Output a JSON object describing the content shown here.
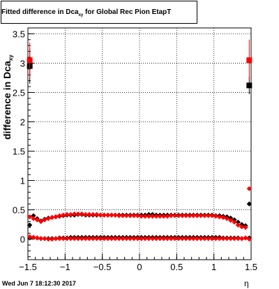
{
  "title": {
    "main": "Fitted difference in Dca",
    "sub": "xy",
    "rest": " for Global Rec Pion EtapT"
  },
  "ylabel": {
    "main": "difference in Dca",
    "sub": "xy"
  },
  "xlabel": "η",
  "footer": "Wed Jun  7 18:12:30 2017",
  "colors": {
    "series_black": "#000000",
    "series_red": "#ff0000",
    "grid": "#000000"
  },
  "chart_data": {
    "type": "scatter",
    "xlim": [
      -1.5,
      1.5
    ],
    "ylim": [
      -0.35,
      3.6
    ],
    "xticks": [
      -1.5,
      -1,
      -0.5,
      0,
      0.5,
      1,
      1.5
    ],
    "xtick_labels": [
      "−1.5",
      "−1",
      "−0.5",
      "0",
      "0.5",
      "1",
      "1.5"
    ],
    "yticks": [
      0,
      0.5,
      1,
      1.5,
      2,
      2.5,
      3,
      3.5
    ],
    "ytick_labels": [
      "0",
      "0.5",
      "1",
      "1.5",
      "2",
      "2.5",
      "3",
      "3.5"
    ],
    "grid": true,
    "series": [
      {
        "color": "#000000",
        "marker": "square",
        "x": [
          -1.475,
          1.475
        ],
        "y": [
          2.95,
          2.62
        ],
        "yerr": [
          0.3,
          0.15
        ]
      },
      {
        "color": "#ff0000",
        "marker": "square",
        "x": [
          -1.475,
          1.475
        ],
        "y": [
          3.05,
          3.05
        ],
        "yerr": [
          0.3,
          0.35
        ]
      },
      {
        "color": "#000000",
        "marker": "diamond",
        "x": [
          -1.475,
          -1.425,
          -1.375,
          -1.325,
          -1.275,
          -1.225,
          -1.175,
          -1.125,
          -1.075,
          -1.025,
          -0.975,
          -0.925,
          -0.875,
          -0.825,
          -0.775,
          -0.725,
          -0.675,
          -0.625,
          -0.575,
          -0.525,
          -0.475,
          -0.425,
          -0.375,
          -0.325,
          -0.275,
          -0.225,
          -0.175,
          -0.125,
          -0.075,
          -0.025,
          0.025,
          0.075,
          0.125,
          0.175,
          0.225,
          0.275,
          0.325,
          0.375,
          0.425,
          0.475,
          0.525,
          0.575,
          0.625,
          0.675,
          0.725,
          0.775,
          0.825,
          0.875,
          0.925,
          0.975,
          1.025,
          1.075,
          1.125,
          1.175,
          1.225,
          1.275,
          1.325,
          1.375,
          1.425,
          1.475
        ],
        "y": [
          0.24,
          0.4,
          0.35,
          0.31,
          0.34,
          0.36,
          0.37,
          0.38,
          0.39,
          0.4,
          0.41,
          0.41,
          0.41,
          0.42,
          0.42,
          0.41,
          0.41,
          0.41,
          0.41,
          0.41,
          0.41,
          0.41,
          0.41,
          0.41,
          0.41,
          0.41,
          0.41,
          0.41,
          0.41,
          0.41,
          0.41,
          0.41,
          0.42,
          0.42,
          0.41,
          0.41,
          0.41,
          0.41,
          0.41,
          0.41,
          0.41,
          0.41,
          0.41,
          0.41,
          0.41,
          0.41,
          0.41,
          0.41,
          0.41,
          0.41,
          0.4,
          0.4,
          0.39,
          0.38,
          0.36,
          0.33,
          0.29,
          0.25,
          0.23,
          0.6
        ]
      },
      {
        "color": "#000000",
        "marker": "diamond",
        "x": [
          -1.475,
          -1.425,
          -1.375,
          -1.325,
          -1.275,
          -1.225,
          -1.175,
          -1.125,
          -1.075,
          -1.025,
          -0.975,
          -0.925,
          -0.875,
          -0.825,
          -0.775,
          -0.725,
          -0.675,
          -0.625,
          -0.575,
          -0.525,
          -0.475,
          -0.425,
          -0.375,
          -0.325,
          -0.275,
          -0.225,
          -0.175,
          -0.125,
          -0.075,
          -0.025,
          0.025,
          0.075,
          0.125,
          0.175,
          0.225,
          0.275,
          0.325,
          0.375,
          0.425,
          0.475,
          0.525,
          0.575,
          0.625,
          0.675,
          0.725,
          0.775,
          0.825,
          0.875,
          0.925,
          0.975,
          1.025,
          1.075,
          1.125,
          1.175,
          1.225,
          1.275,
          1.325,
          1.375,
          1.425,
          1.475
        ],
        "y": [
          0.02,
          0.03,
          0.02,
          0.01,
          0.01,
          0.01,
          0.01,
          0.01,
          0.02,
          0.02,
          0.02,
          0.03,
          0.03,
          0.03,
          0.03,
          0.03,
          0.03,
          0.03,
          0.03,
          0.03,
          0.03,
          0.03,
          0.03,
          0.03,
          0.03,
          0.03,
          0.03,
          0.03,
          0.03,
          0.03,
          0.03,
          0.03,
          0.03,
          0.03,
          0.03,
          0.03,
          0.03,
          0.03,
          0.03,
          0.03,
          0.03,
          0.03,
          0.03,
          0.03,
          0.03,
          0.03,
          0.03,
          0.03,
          0.03,
          0.03,
          0.03,
          0.03,
          0.02,
          0.02,
          0.02,
          0.02,
          0.02,
          0.01,
          0.02,
          0.02
        ]
      },
      {
        "color": "#ff0000",
        "marker": "diamond",
        "x": [
          -1.475,
          -1.425,
          -1.375,
          -1.325,
          -1.275,
          -1.225,
          -1.175,
          -1.125,
          -1.075,
          -1.025,
          -0.975,
          -0.925,
          -0.875,
          -0.825,
          -0.775,
          -0.725,
          -0.675,
          -0.625,
          -0.575,
          -0.525,
          -0.475,
          -0.425,
          -0.375,
          -0.325,
          -0.275,
          -0.225,
          -0.175,
          -0.125,
          -0.075,
          -0.025,
          0.025,
          0.075,
          0.125,
          0.175,
          0.225,
          0.275,
          0.325,
          0.375,
          0.425,
          0.475,
          0.525,
          0.575,
          0.625,
          0.675,
          0.725,
          0.775,
          0.825,
          0.875,
          0.925,
          0.975,
          1.025,
          1.075,
          1.125,
          1.175,
          1.225,
          1.275,
          1.325,
          1.375,
          1.425,
          1.475
        ],
        "y": [
          0.38,
          0.35,
          0.33,
          0.3,
          0.33,
          0.35,
          0.37,
          0.38,
          0.4,
          0.41,
          0.42,
          0.42,
          0.43,
          0.43,
          0.43,
          0.42,
          0.42,
          0.42,
          0.42,
          0.41,
          0.41,
          0.41,
          0.41,
          0.41,
          0.4,
          0.4,
          0.4,
          0.4,
          0.4,
          0.4,
          0.39,
          0.39,
          0.39,
          0.39,
          0.39,
          0.39,
          0.39,
          0.39,
          0.4,
          0.4,
          0.4,
          0.4,
          0.4,
          0.4,
          0.4,
          0.4,
          0.4,
          0.4,
          0.4,
          0.4,
          0.39,
          0.38,
          0.37,
          0.35,
          0.32,
          0.29,
          0.24,
          0.21,
          0.2,
          0.86
        ]
      },
      {
        "color": "#ff0000",
        "marker": "diamond",
        "x": [
          -1.475,
          -1.425,
          -1.375,
          -1.325,
          -1.275,
          -1.225,
          -1.175,
          -1.125,
          -1.075,
          -1.025,
          -0.975,
          -0.925,
          -0.875,
          -0.825,
          -0.775,
          -0.725,
          -0.675,
          -0.625,
          -0.575,
          -0.525,
          -0.475,
          -0.425,
          -0.375,
          -0.325,
          -0.275,
          -0.225,
          -0.175,
          -0.125,
          -0.075,
          -0.025,
          0.025,
          0.075,
          0.125,
          0.175,
          0.225,
          0.275,
          0.325,
          0.375,
          0.425,
          0.475,
          0.525,
          0.575,
          0.625,
          0.675,
          0.725,
          0.775,
          0.825,
          0.875,
          0.925,
          0.975,
          1.025,
          1.075,
          1.125,
          1.175,
          1.225,
          1.275,
          1.325,
          1.375,
          1.425,
          1.475
        ],
        "y": [
          0.04,
          0.03,
          0.02,
          0.01,
          0.01,
          0.0,
          0.0,
          0.01,
          0.01,
          0.01,
          0.01,
          0.01,
          0.01,
          0.01,
          0.01,
          0.01,
          0.01,
          0.01,
          0.01,
          0.01,
          0.01,
          0.01,
          0.01,
          0.01,
          0.01,
          0.01,
          0.01,
          0.01,
          0.01,
          0.01,
          0.01,
          0.01,
          0.01,
          0.01,
          0.01,
          0.01,
          0.01,
          0.01,
          0.01,
          0.01,
          0.01,
          0.01,
          0.01,
          0.01,
          0.01,
          0.01,
          0.01,
          0.01,
          0.01,
          0.01,
          0.01,
          0.01,
          0.01,
          0.01,
          0.01,
          0.01,
          0.01,
          0.01,
          0.02,
          0.0
        ]
      }
    ]
  }
}
